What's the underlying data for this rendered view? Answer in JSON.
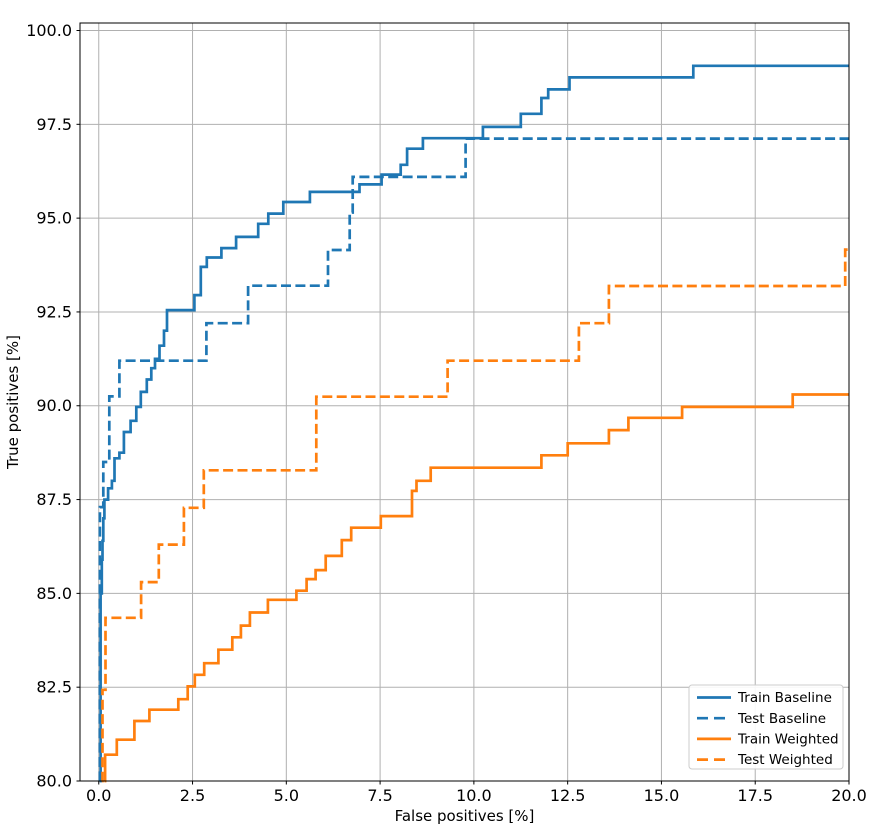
{
  "figure": {
    "background": "#ffffff"
  },
  "colors": {
    "blue": "#1f77b4",
    "orange": "#ff7f0e",
    "grid": "#b0b0b0",
    "spine": "#000000",
    "text": "#000000",
    "legend_border": "#cccccc",
    "legend_bg": "#ffffff"
  },
  "chart_data": {
    "type": "line",
    "title": "",
    "xlabel": "False positives [%]",
    "ylabel": "True positives [%]",
    "xlim": [
      -0.5,
      20.0
    ],
    "ylim": [
      80.0,
      100.2
    ],
    "xticks": [
      0.0,
      2.5,
      5.0,
      7.5,
      10.0,
      12.5,
      15.0,
      17.5,
      20.0
    ],
    "xtick_labels": [
      "0.0",
      "2.5",
      "5.0",
      "7.5",
      "10.0",
      "12.5",
      "15.0",
      "17.5",
      "20.0"
    ],
    "yticks": [
      80.0,
      82.5,
      85.0,
      87.5,
      90.0,
      92.5,
      95.0,
      97.5,
      100.0
    ],
    "ytick_labels": [
      "80.0",
      "82.5",
      "85.0",
      "87.5",
      "90.0",
      "92.5",
      "95.0",
      "97.5",
      "100.0"
    ],
    "grid": true,
    "step_mode": "post",
    "legend_position": "lower right",
    "series": [
      {
        "name": "Train Baseline",
        "slug": "train-baseline",
        "color": "#1f77b4",
        "dash": "solid",
        "points": [
          [
            0.04,
            80
          ],
          [
            0.05,
            85.0
          ],
          [
            0.08,
            85.9
          ],
          [
            0.1,
            86.4
          ],
          [
            0.12,
            87.0
          ],
          [
            0.15,
            87.5
          ],
          [
            0.25,
            87.8
          ],
          [
            0.35,
            88.0
          ],
          [
            0.42,
            88.6
          ],
          [
            0.55,
            88.75
          ],
          [
            0.67,
            89.3
          ],
          [
            0.85,
            89.6
          ],
          [
            1.0,
            89.97
          ],
          [
            1.12,
            90.37
          ],
          [
            1.28,
            90.7
          ],
          [
            1.4,
            91.0
          ],
          [
            1.5,
            91.25
          ],
          [
            1.62,
            91.6
          ],
          [
            1.74,
            92.0
          ],
          [
            1.82,
            92.55
          ],
          [
            2.55,
            92.95
          ],
          [
            2.72,
            93.7
          ],
          [
            2.88,
            93.95
          ],
          [
            3.27,
            94.2
          ],
          [
            3.66,
            94.5
          ],
          [
            4.25,
            94.85
          ],
          [
            4.52,
            95.12
          ],
          [
            4.92,
            95.43
          ],
          [
            5.63,
            95.7
          ],
          [
            6.95,
            95.9
          ],
          [
            7.54,
            96.16
          ],
          [
            8.05,
            96.42
          ],
          [
            8.22,
            96.85
          ],
          [
            8.64,
            97.13
          ],
          [
            10.24,
            97.43
          ],
          [
            11.25,
            97.78
          ],
          [
            11.8,
            98.2
          ],
          [
            11.98,
            98.43
          ],
          [
            12.55,
            98.75
          ],
          [
            15.85,
            99.06
          ],
          [
            20,
            99.06
          ]
        ]
      },
      {
        "name": "Test Baseline",
        "slug": "test-baseline",
        "color": "#1f77b4",
        "dash": "dashed",
        "points": [
          [
            0.02,
            80
          ],
          [
            0.03,
            87.3
          ],
          [
            0.12,
            88.5
          ],
          [
            0.28,
            90.25
          ],
          [
            0.55,
            91.2
          ],
          [
            2.87,
            92.2
          ],
          [
            3.98,
            93.2
          ],
          [
            6.11,
            94.15
          ],
          [
            6.69,
            95.15
          ],
          [
            6.77,
            96.1
          ],
          [
            9.78,
            97.12
          ],
          [
            20,
            97.12
          ]
        ]
      },
      {
        "name": "Train Weighted",
        "slug": "train-weighted",
        "color": "#ff7f0e",
        "dash": "solid",
        "points": [
          [
            0.15,
            80
          ],
          [
            0.17,
            80.7
          ],
          [
            0.48,
            81.1
          ],
          [
            0.95,
            81.6
          ],
          [
            1.35,
            81.9
          ],
          [
            2.12,
            82.18
          ],
          [
            2.37,
            82.52
          ],
          [
            2.56,
            82.83
          ],
          [
            2.81,
            83.14
          ],
          [
            3.19,
            83.5
          ],
          [
            3.56,
            83.83
          ],
          [
            3.79,
            84.14
          ],
          [
            4.03,
            84.49
          ],
          [
            4.51,
            84.83
          ],
          [
            5.27,
            85.07
          ],
          [
            5.54,
            85.38
          ],
          [
            5.78,
            85.62
          ],
          [
            6.05,
            86.0
          ],
          [
            6.48,
            86.42
          ],
          [
            6.73,
            86.75
          ],
          [
            7.52,
            87.06
          ],
          [
            8.35,
            87.73
          ],
          [
            8.47,
            88.0
          ],
          [
            8.85,
            88.35
          ],
          [
            11.8,
            88.68
          ],
          [
            12.5,
            89.0
          ],
          [
            13.6,
            89.35
          ],
          [
            14.12,
            89.68
          ],
          [
            15.55,
            89.97
          ],
          [
            18.5,
            90.3
          ],
          [
            20,
            90.3
          ]
        ]
      },
      {
        "name": "Test Weighted",
        "slug": "test-weighted",
        "color": "#ff7f0e",
        "dash": "dashed",
        "points": [
          [
            0.08,
            80
          ],
          [
            0.1,
            82.43
          ],
          [
            0.18,
            84.35
          ],
          [
            1.13,
            85.3
          ],
          [
            1.6,
            86.3
          ],
          [
            2.27,
            87.28
          ],
          [
            2.8,
            88.28
          ],
          [
            5.8,
            90.24
          ],
          [
            9.3,
            91.2
          ],
          [
            12.8,
            92.2
          ],
          [
            13.6,
            93.19
          ],
          [
            19.9,
            94.16
          ],
          [
            20,
            94.16
          ]
        ]
      }
    ],
    "legend_entries": [
      "Train Baseline",
      "Test Baseline",
      "Train Weighted",
      "Test Weighted"
    ]
  }
}
